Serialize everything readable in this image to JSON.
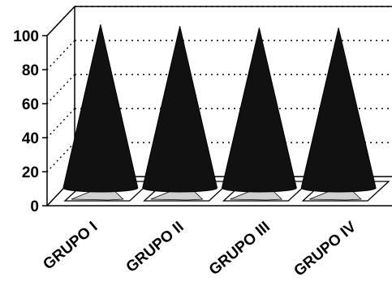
{
  "chart_data": {
    "type": "bar",
    "bar_shape": "cone-3d",
    "categories": [
      "GRUPO I",
      "GRUPO II",
      "GRUPO III",
      "GRUPO IV"
    ],
    "values": [
      98,
      97,
      96,
      96
    ],
    "yticks": [
      0,
      20,
      40,
      60,
      80,
      100
    ],
    "ylim": [
      0,
      100
    ],
    "grid": "dotted-horizontal",
    "colors": {
      "cone": "#111111",
      "cone_edge": "#000000",
      "floor_fill": "#d0d0d0",
      "axis": "#000000"
    }
  }
}
